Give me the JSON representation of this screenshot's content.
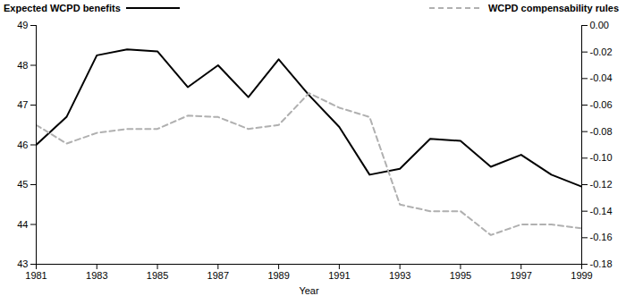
{
  "chart_data": {
    "type": "line",
    "xlabel": "Year",
    "x": [
      1981,
      1982,
      1983,
      1984,
      1985,
      1986,
      1987,
      1988,
      1989,
      1990,
      1991,
      1992,
      1993,
      1994,
      1995,
      1996,
      1997,
      1998,
      1999
    ],
    "xlim": [
      1981,
      1999
    ],
    "xticks": [
      1981,
      1983,
      1985,
      1987,
      1989,
      1991,
      1993,
      1995,
      1997,
      1999
    ],
    "ylim": [
      43,
      49
    ],
    "yticks": [
      43,
      44,
      45,
      46,
      47,
      48,
      49
    ],
    "y2lim": [
      -0.18,
      0
    ],
    "y2ticks": [
      {
        "value": 0,
        "label": "0.00"
      },
      {
        "value": -0.02,
        "label": "-0.02"
      },
      {
        "value": -0.04,
        "label": "-0.04"
      },
      {
        "value": -0.06,
        "label": "-0.06"
      },
      {
        "value": -0.08,
        "label": "-0.08"
      },
      {
        "value": -0.1,
        "label": "-0.10"
      },
      {
        "value": -0.12,
        "label": "-0.12"
      },
      {
        "value": -0.14,
        "label": "-0.14"
      },
      {
        "value": -0.16,
        "label": "-0.16"
      },
      {
        "value": -0.18,
        "label": "-0.18"
      }
    ],
    "grid": false,
    "legend": "top",
    "series": [
      {
        "name": "Expected WCPD benefits",
        "color": "#000000",
        "line_style": "solid",
        "values": [
          46.0,
          46.7,
          48.25,
          48.4,
          48.35,
          47.45,
          48.0,
          47.2,
          48.15,
          47.25,
          46.45,
          45.25,
          45.4,
          46.15,
          46.1,
          45.45,
          45.75,
          45.25,
          44.95
        ]
      },
      {
        "name": "WCPD compensability rules",
        "color": "#b0b0b0",
        "line_style": "dashed",
        "axis": "y2",
        "values": [
          -0.075,
          -0.089,
          -0.081,
          -0.078,
          -0.078,
          -0.068,
          -0.069,
          -0.078,
          -0.075,
          -0.051,
          -0.062,
          -0.069,
          -0.135,
          -0.14,
          -0.14,
          -0.158,
          -0.15,
          -0.15,
          -0.153
        ]
      }
    ]
  }
}
